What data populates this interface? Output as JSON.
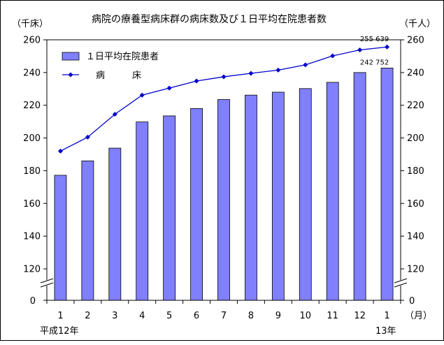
{
  "chart_data": {
    "type": "bar+line",
    "title": "病院の療養型病床群の病床数及び１日平均在院患者数",
    "left_unit": "（千床）",
    "right_unit": "（千人）",
    "x_unit": "（月）",
    "categories": [
      "1",
      "2",
      "3",
      "4",
      "5",
      "6",
      "7",
      "8",
      "9",
      "10",
      "11",
      "12",
      "1"
    ],
    "year_labels": {
      "start": "平成12年",
      "end": "13年"
    },
    "ylim": [
      120,
      260
    ],
    "y_ticks": [
      "120",
      "140",
      "160",
      "180",
      "200",
      "220",
      "240",
      "260"
    ],
    "axis_zero_label": "0",
    "grid": false,
    "legend_position": "top-left",
    "series": [
      {
        "name": "１日平均在院患者",
        "type": "bar",
        "axis": "right",
        "color": "#8080ff",
        "values": [
          177.2,
          186.0,
          193.8,
          209.8,
          213.5,
          218.0,
          223.5,
          226.2,
          228.0,
          230.2,
          234.0,
          240.0,
          242.752
        ]
      },
      {
        "name": "病　　　床",
        "type": "line",
        "axis": "left",
        "color": "#0000cc",
        "values": [
          192.0,
          200.5,
          214.5,
          226.2,
          230.5,
          234.8,
          237.4,
          239.5,
          241.5,
          244.7,
          250.2,
          253.8,
          255.639
        ]
      }
    ],
    "annotations": [
      {
        "text": "255 639",
        "series": "line",
        "index": 12
      },
      {
        "text": "242 752",
        "series": "bar",
        "index": 12
      }
    ]
  }
}
